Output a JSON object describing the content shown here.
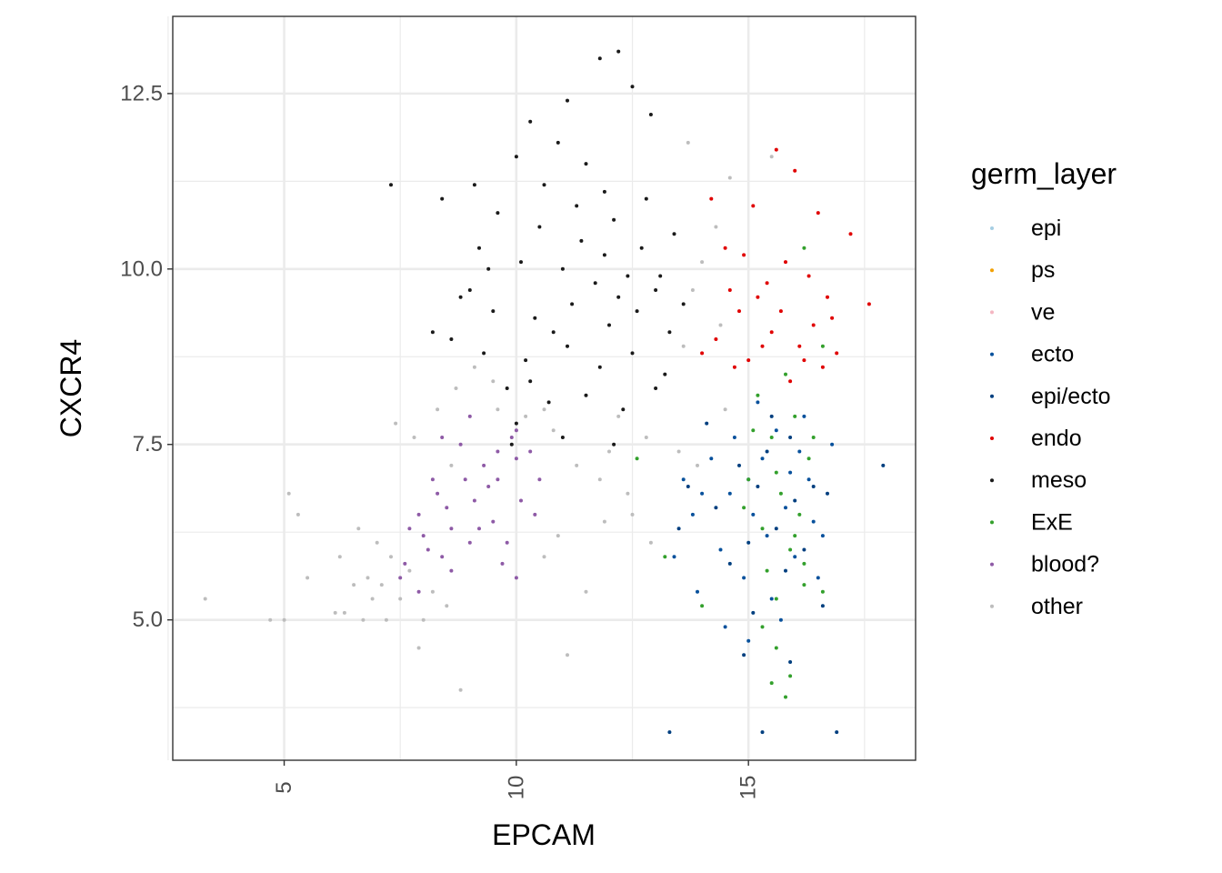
{
  "chart_data": {
    "type": "scatter",
    "title": "",
    "xlabel": "EPCAM",
    "ylabel": "CXCR4",
    "xlim": [
      2.6,
      18.6
    ],
    "ylim": [
      3.0,
      13.6
    ],
    "x_ticks": [
      5,
      10,
      15
    ],
    "y_ticks": [
      5.0,
      7.5,
      10.0,
      12.5
    ],
    "x_tick_labels": [
      "5",
      "10",
      "15"
    ],
    "y_tick_labels": [
      "5.0",
      "7.5",
      "10.0",
      "12.5"
    ],
    "grid": true,
    "legend_title": "germ_layer",
    "legend_position": "right",
    "series": [
      {
        "name": "epi",
        "color": "#a6cee3",
        "points": []
      },
      {
        "name": "ps",
        "color": "#f2a000",
        "points": []
      },
      {
        "name": "ve",
        "color": "#f4b6c2",
        "points": []
      },
      {
        "name": "ecto",
        "color": "#08519c",
        "points": [
          [
            15.2,
            8.1
          ],
          [
            15.6,
            7.7
          ],
          [
            16.1,
            7.4
          ],
          [
            15.0,
            7.0
          ],
          [
            14.6,
            6.8
          ],
          [
            15.8,
            6.6
          ],
          [
            16.3,
            7.0
          ],
          [
            14.2,
            7.3
          ],
          [
            13.8,
            6.5
          ],
          [
            15.4,
            6.2
          ],
          [
            16.0,
            5.9
          ],
          [
            14.9,
            5.6
          ],
          [
            15.5,
            5.3
          ],
          [
            16.4,
            6.4
          ],
          [
            13.6,
            7.0
          ],
          [
            14.4,
            6.0
          ],
          [
            15.1,
            6.5
          ],
          [
            15.9,
            7.1
          ],
          [
            16.6,
            6.2
          ],
          [
            13.4,
            5.9
          ],
          [
            14.7,
            7.6
          ],
          [
            15.3,
            7.3
          ],
          [
            16.2,
            7.9
          ],
          [
            14.0,
            6.8
          ],
          [
            15.7,
            5.0
          ],
          [
            16.8,
            7.5
          ],
          [
            13.9,
            5.4
          ],
          [
            14.5,
            4.9
          ],
          [
            15.0,
            4.7
          ],
          [
            16.5,
            5.6
          ]
        ]
      },
      {
        "name": "epi/ecto",
        "color": "#003f7f",
        "points": [
          [
            15.5,
            7.9
          ],
          [
            15.9,
            7.6
          ],
          [
            14.8,
            7.2
          ],
          [
            15.2,
            6.9
          ],
          [
            16.0,
            6.7
          ],
          [
            14.3,
            6.6
          ],
          [
            15.6,
            6.3
          ],
          [
            16.4,
            6.9
          ],
          [
            14.1,
            7.8
          ],
          [
            15.0,
            6.1
          ],
          [
            15.8,
            5.7
          ],
          [
            14.6,
            5.8
          ],
          [
            16.2,
            6.0
          ],
          [
            13.7,
            6.9
          ],
          [
            15.4,
            7.4
          ],
          [
            16.7,
            6.8
          ],
          [
            13.3,
            3.4
          ],
          [
            15.3,
            3.4
          ],
          [
            16.9,
            3.4
          ],
          [
            17.9,
            7.2
          ],
          [
            14.9,
            4.5
          ],
          [
            15.9,
            4.4
          ],
          [
            16.6,
            5.2
          ],
          [
            13.5,
            6.3
          ],
          [
            15.1,
            5.1
          ]
        ]
      },
      {
        "name": "endo",
        "color": "#e00000",
        "points": [
          [
            15.6,
            11.7
          ],
          [
            16.0,
            11.4
          ],
          [
            14.2,
            11.0
          ],
          [
            15.1,
            10.9
          ],
          [
            16.5,
            10.8
          ],
          [
            17.2,
            10.5
          ],
          [
            14.5,
            10.3
          ],
          [
            15.8,
            10.1
          ],
          [
            16.3,
            9.9
          ],
          [
            15.2,
            9.6
          ],
          [
            14.8,
            9.4
          ],
          [
            16.8,
            9.3
          ],
          [
            17.6,
            9.5
          ],
          [
            15.5,
            9.1
          ],
          [
            14.3,
            9.0
          ],
          [
            16.1,
            8.9
          ],
          [
            15.0,
            8.7
          ],
          [
            16.6,
            8.6
          ],
          [
            14.0,
            8.8
          ],
          [
            15.9,
            8.4
          ],
          [
            16.9,
            8.8
          ],
          [
            14.7,
            8.6
          ],
          [
            15.4,
            9.8
          ],
          [
            16.4,
            9.2
          ],
          [
            14.9,
            10.2
          ],
          [
            15.7,
            9.4
          ],
          [
            16.2,
            8.7
          ],
          [
            15.3,
            8.9
          ],
          [
            14.6,
            9.7
          ],
          [
            16.7,
            9.6
          ]
        ]
      },
      {
        "name": "meso",
        "color": "#1a1a1a",
        "points": [
          [
            12.2,
            13.1
          ],
          [
            12.5,
            12.6
          ],
          [
            11.8,
            13.0
          ],
          [
            11.1,
            12.4
          ],
          [
            10.3,
            12.1
          ],
          [
            10.9,
            11.8
          ],
          [
            12.9,
            12.2
          ],
          [
            11.5,
            11.5
          ],
          [
            10.0,
            11.6
          ],
          [
            9.1,
            11.2
          ],
          [
            8.4,
            11.0
          ],
          [
            9.6,
            10.8
          ],
          [
            10.5,
            10.6
          ],
          [
            11.3,
            10.9
          ],
          [
            12.1,
            10.7
          ],
          [
            12.8,
            11.0
          ],
          [
            13.4,
            10.5
          ],
          [
            9.2,
            10.3
          ],
          [
            10.1,
            10.1
          ],
          [
            11.0,
            10.0
          ],
          [
            11.9,
            10.2
          ],
          [
            12.4,
            9.9
          ],
          [
            13.0,
            9.7
          ],
          [
            13.6,
            9.5
          ],
          [
            8.8,
            9.6
          ],
          [
            9.5,
            9.4
          ],
          [
            10.4,
            9.3
          ],
          [
            11.2,
            9.5
          ],
          [
            12.0,
            9.2
          ],
          [
            12.6,
            9.4
          ],
          [
            13.3,
            9.1
          ],
          [
            8.6,
            9.0
          ],
          [
            9.3,
            8.8
          ],
          [
            10.2,
            8.7
          ],
          [
            11.1,
            8.9
          ],
          [
            11.8,
            8.6
          ],
          [
            12.5,
            8.8
          ],
          [
            13.2,
            8.5
          ],
          [
            9.8,
            8.3
          ],
          [
            10.7,
            8.1
          ],
          [
            11.5,
            8.2
          ],
          [
            12.3,
            8.0
          ],
          [
            13.0,
            8.3
          ],
          [
            10.0,
            7.8
          ],
          [
            11.0,
            7.6
          ],
          [
            12.1,
            7.5
          ],
          [
            8.2,
            9.1
          ],
          [
            7.3,
            11.2
          ],
          [
            9.9,
            7.5
          ],
          [
            11.7,
            9.8
          ],
          [
            10.8,
            9.1
          ],
          [
            9.4,
            10.0
          ],
          [
            12.7,
            10.3
          ],
          [
            10.6,
            11.2
          ],
          [
            11.4,
            10.4
          ],
          [
            13.1,
            9.9
          ],
          [
            9.0,
            9.7
          ],
          [
            10.3,
            8.4
          ],
          [
            11.9,
            11.1
          ],
          [
            12.2,
            9.6
          ]
        ]
      },
      {
        "name": "ExE",
        "color": "#33a02c",
        "points": [
          [
            16.2,
            10.3
          ],
          [
            15.8,
            8.5
          ],
          [
            15.2,
            8.2
          ],
          [
            16.0,
            7.9
          ],
          [
            15.5,
            7.6
          ],
          [
            16.3,
            7.3
          ],
          [
            15.0,
            7.0
          ],
          [
            15.7,
            6.8
          ],
          [
            16.1,
            6.5
          ],
          [
            15.3,
            6.3
          ],
          [
            15.9,
            6.0
          ],
          [
            15.4,
            5.7
          ],
          [
            16.2,
            5.5
          ],
          [
            15.6,
            5.3
          ],
          [
            15.9,
            4.2
          ],
          [
            15.8,
            3.9
          ],
          [
            15.5,
            4.1
          ],
          [
            16.6,
            8.9
          ],
          [
            12.6,
            7.3
          ],
          [
            13.2,
            5.9
          ],
          [
            14.0,
            5.2
          ],
          [
            16.6,
            5.4
          ],
          [
            15.1,
            7.7
          ],
          [
            16.4,
            7.6
          ],
          [
            15.6,
            7.1
          ],
          [
            16.0,
            6.2
          ],
          [
            14.9,
            6.6
          ],
          [
            15.3,
            4.9
          ],
          [
            15.6,
            4.6
          ],
          [
            16.2,
            5.8
          ]
        ]
      },
      {
        "name": "blood?",
        "color": "#8e5aa6",
        "points": [
          [
            8.6,
            6.3
          ],
          [
            9.1,
            6.7
          ],
          [
            9.6,
            7.0
          ],
          [
            10.0,
            7.3
          ],
          [
            9.3,
            7.2
          ],
          [
            8.8,
            7.5
          ],
          [
            9.9,
            7.6
          ],
          [
            10.3,
            7.4
          ],
          [
            8.3,
            6.8
          ],
          [
            7.9,
            6.5
          ],
          [
            8.1,
            6.0
          ],
          [
            7.6,
            5.8
          ],
          [
            7.9,
            5.4
          ],
          [
            8.4,
            5.9
          ],
          [
            9.0,
            6.1
          ],
          [
            9.5,
            6.4
          ],
          [
            10.1,
            6.7
          ],
          [
            10.5,
            7.0
          ],
          [
            9.0,
            7.9
          ],
          [
            10.0,
            7.7
          ],
          [
            8.5,
            6.6
          ],
          [
            9.2,
            6.3
          ],
          [
            9.8,
            6.1
          ],
          [
            8.0,
            6.2
          ],
          [
            7.5,
            5.6
          ],
          [
            8.6,
            5.7
          ],
          [
            9.4,
            6.9
          ],
          [
            10.4,
            6.5
          ],
          [
            9.7,
            5.8
          ],
          [
            10.0,
            5.6
          ],
          [
            8.2,
            7.0
          ],
          [
            8.9,
            7.0
          ],
          [
            9.6,
            7.4
          ],
          [
            8.4,
            7.6
          ],
          [
            7.7,
            6.3
          ]
        ]
      },
      {
        "name": "other",
        "color": "#bdbdbd",
        "points": [
          [
            3.3,
            5.3
          ],
          [
            4.7,
            5.0
          ],
          [
            5.1,
            6.8
          ],
          [
            5.3,
            6.5
          ],
          [
            5.5,
            5.6
          ],
          [
            6.1,
            5.1
          ],
          [
            6.3,
            5.1
          ],
          [
            6.5,
            5.5
          ],
          [
            6.7,
            5.0
          ],
          [
            6.9,
            5.3
          ],
          [
            7.1,
            5.5
          ],
          [
            7.2,
            5.0
          ],
          [
            7.3,
            5.9
          ],
          [
            7.5,
            5.3
          ],
          [
            7.7,
            5.7
          ],
          [
            7.9,
            4.6
          ],
          [
            8.0,
            5.0
          ],
          [
            8.2,
            5.4
          ],
          [
            8.5,
            5.2
          ],
          [
            8.8,
            4.0
          ],
          [
            6.6,
            6.3
          ],
          [
            7.4,
            7.8
          ],
          [
            7.8,
            7.6
          ],
          [
            8.3,
            8.0
          ],
          [
            8.7,
            8.3
          ],
          [
            9.1,
            8.6
          ],
          [
            9.6,
            8.0
          ],
          [
            10.2,
            7.9
          ],
          [
            10.8,
            7.7
          ],
          [
            11.3,
            7.2
          ],
          [
            11.8,
            7.0
          ],
          [
            12.2,
            7.9
          ],
          [
            12.8,
            7.6
          ],
          [
            13.5,
            7.4
          ],
          [
            13.9,
            7.2
          ],
          [
            12.5,
            6.5
          ],
          [
            12.9,
            6.1
          ],
          [
            11.5,
            5.4
          ],
          [
            11.1,
            4.5
          ],
          [
            10.6,
            5.9
          ],
          [
            13.8,
            9.7
          ],
          [
            14.0,
            10.1
          ],
          [
            14.3,
            10.6
          ],
          [
            14.6,
            11.3
          ],
          [
            13.7,
            11.8
          ],
          [
            15.5,
            11.6
          ],
          [
            14.4,
            9.2
          ],
          [
            13.6,
            8.9
          ],
          [
            12.4,
            6.8
          ],
          [
            11.9,
            6.4
          ],
          [
            10.9,
            6.2
          ],
          [
            9.5,
            8.4
          ],
          [
            10.6,
            8.0
          ],
          [
            8.6,
            7.2
          ],
          [
            6.2,
            5.9
          ],
          [
            5.0,
            5.0
          ],
          [
            6.8,
            5.6
          ],
          [
            7.0,
            6.1
          ],
          [
            14.5,
            8.0
          ],
          [
            12.0,
            7.4
          ]
        ]
      }
    ]
  }
}
